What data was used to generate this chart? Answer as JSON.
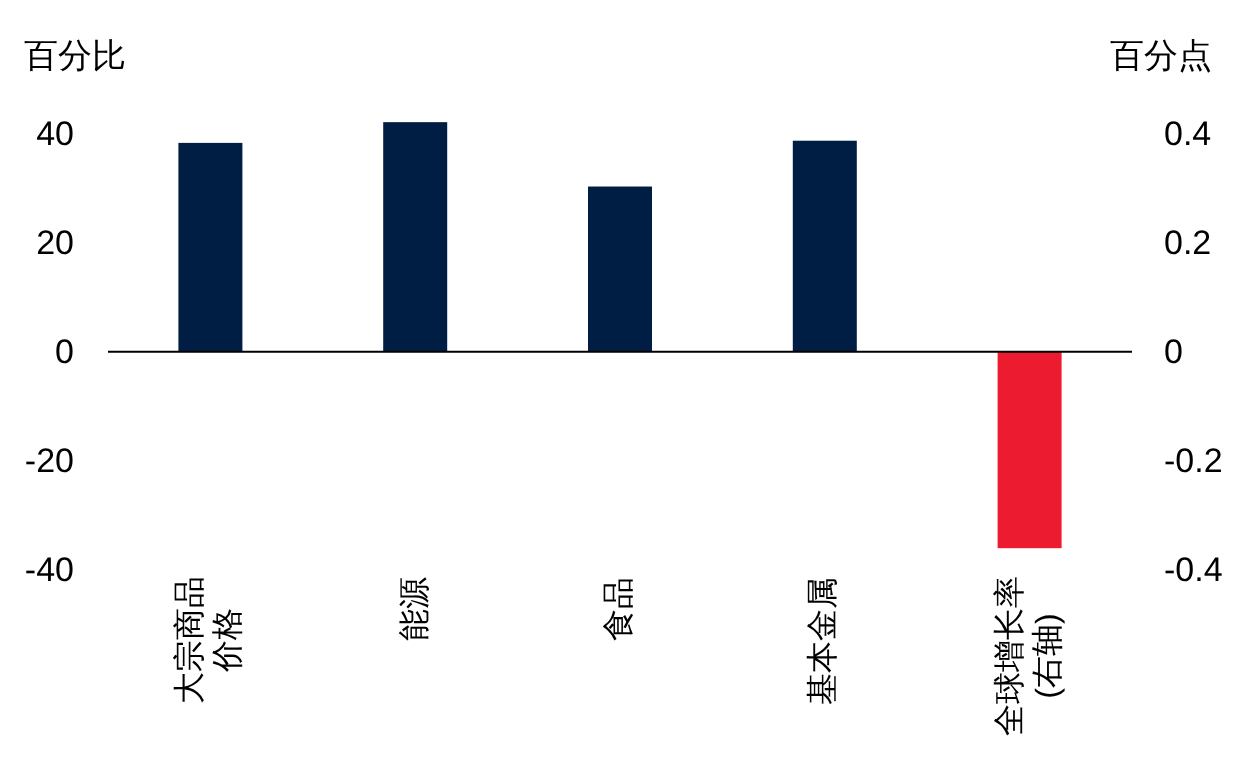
{
  "chart_data": {
    "type": "bar",
    "categories": [
      "大宗商品价格",
      "能源",
      "食品",
      "基本金属",
      "全球增长率(右轴)"
    ],
    "ylabel": "百分比",
    "y2label": "百分点",
    "ylim": [
      -40,
      44
    ],
    "yticks": [
      -40,
      -20,
      0,
      20,
      40
    ],
    "y2lim": [
      -0.4,
      0.44
    ],
    "y2ticks": [
      -0.4,
      -0.2,
      0,
      0.2,
      0.4
    ],
    "series": [
      {
        "color": "#001d43",
        "values": [
          38.3,
          42.1,
          30.3,
          38.7,
          null
        ]
      },
      {
        "color": "#ed1b2f",
        "axis": "y2",
        "values": [
          null,
          null,
          null,
          null,
          -0.36
        ]
      }
    ]
  }
}
